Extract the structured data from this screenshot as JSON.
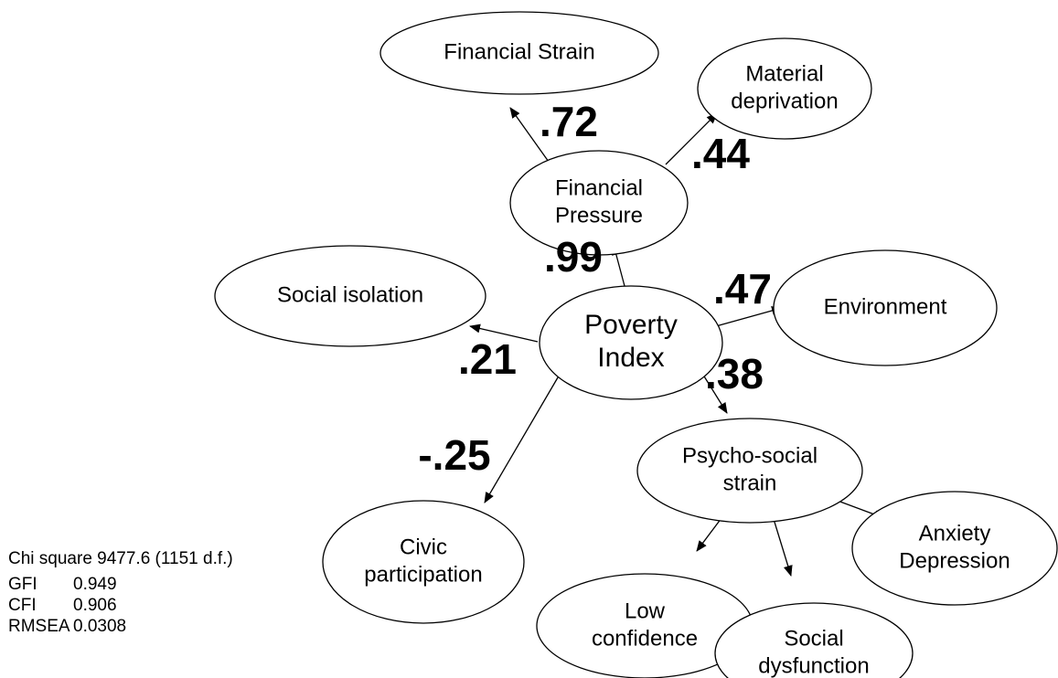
{
  "nodes": [
    {
      "id": "financial-strain",
      "lines": [
        "Financial Strain"
      ]
    },
    {
      "id": "material-deprivation",
      "lines": [
        "Material",
        "deprivation"
      ]
    },
    {
      "id": "financial-pressure",
      "lines": [
        "Financial",
        "Pressure"
      ]
    },
    {
      "id": "social-isolation",
      "lines": [
        "Social isolation"
      ]
    },
    {
      "id": "poverty-index",
      "lines": [
        "Poverty",
        "Index"
      ]
    },
    {
      "id": "environment",
      "lines": [
        "Environment"
      ]
    },
    {
      "id": "psycho-social-strain",
      "lines": [
        "Psycho-social",
        "strain"
      ]
    },
    {
      "id": "civic-participation",
      "lines": [
        "Civic",
        "participation"
      ]
    },
    {
      "id": "low-confidence",
      "lines": [
        "Low",
        "confidence"
      ]
    },
    {
      "id": "anxiety-depression",
      "lines": [
        "Anxiety",
        "Depression"
      ]
    },
    {
      "id": "social-dysfunction",
      "lines": [
        "Social",
        "dysfunction"
      ]
    }
  ],
  "edges": [
    {
      "from": "financial-pressure",
      "to": "financial-strain",
      "label": ".72"
    },
    {
      "from": "financial-pressure",
      "to": "material-deprivation",
      "label": ".44"
    },
    {
      "from": "poverty-index",
      "to": "financial-pressure",
      "label": ".99"
    },
    {
      "from": "poverty-index",
      "to": "social-isolation",
      "label": ".21"
    },
    {
      "from": "poverty-index",
      "to": "environment",
      "label": ".47"
    },
    {
      "from": "poverty-index",
      "to": "psycho-social-strain",
      "label": ".38"
    },
    {
      "from": "poverty-index",
      "to": "civic-participation",
      "label": "-.25"
    },
    {
      "from": "psycho-social-strain",
      "to": "low-confidence"
    },
    {
      "from": "psycho-social-strain",
      "to": "social-dysfunction"
    },
    {
      "from": "psycho-social-strain",
      "to": "anxiety-depression"
    }
  ],
  "stats": [
    {
      "label": "Chi square 9477.6 (1151 d.f.)"
    },
    {
      "label": "GFI",
      "value": "0.949"
    },
    {
      "label": "CFI",
      "value": "0.906"
    },
    {
      "label": "RMSEA",
      "value": "0.0308"
    }
  ]
}
